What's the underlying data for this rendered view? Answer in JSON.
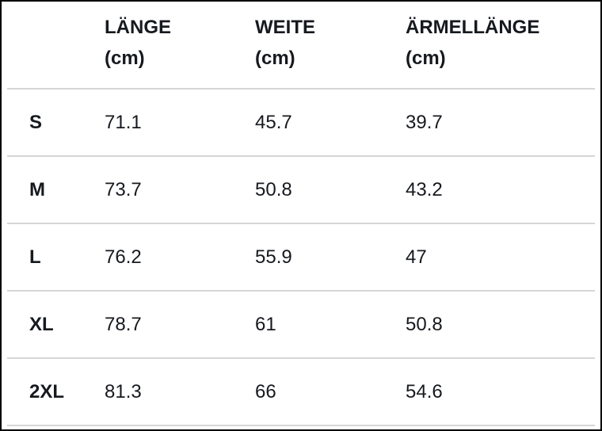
{
  "table": {
    "columns": [
      {
        "label": "",
        "unit": ""
      },
      {
        "label": "LÄNGE",
        "unit": "(cm)"
      },
      {
        "label": "WEITE",
        "unit": "(cm)"
      },
      {
        "label": "ÄRMELLÄNGE",
        "unit": "(cm)"
      }
    ],
    "rows": [
      {
        "size": "S",
        "values": [
          "71.1",
          "45.7",
          "39.7"
        ]
      },
      {
        "size": "M",
        "values": [
          "73.7",
          "50.8",
          "43.2"
        ]
      },
      {
        "size": "L",
        "values": [
          "76.2",
          "55.9",
          "47"
        ]
      },
      {
        "size": "XL",
        "values": [
          "78.7",
          "61",
          "50.8"
        ]
      },
      {
        "size": "2XL",
        "values": [
          "81.3",
          "66",
          "54.6"
        ]
      }
    ]
  },
  "colors": {
    "text": "#16191e",
    "outer_border": "#000000",
    "row_divider": "#d6d6d9",
    "background": "#ffffff"
  },
  "chart_data": {
    "type": "table",
    "title": "",
    "columns": [
      "",
      "LÄNGE (cm)",
      "WEITE (cm)",
      "ÄRMELLÄNGE (cm)"
    ],
    "rows": [
      [
        "S",
        71.1,
        45.7,
        39.7
      ],
      [
        "M",
        73.7,
        50.8,
        43.2
      ],
      [
        "L",
        76.2,
        55.9,
        47
      ],
      [
        "XL",
        78.7,
        61,
        50.8
      ],
      [
        "2XL",
        81.3,
        66,
        54.6
      ]
    ],
    "units": "cm",
    "notes_layout": "size-chart table, grid off, horizontal light dividers only, black outer frame"
  }
}
